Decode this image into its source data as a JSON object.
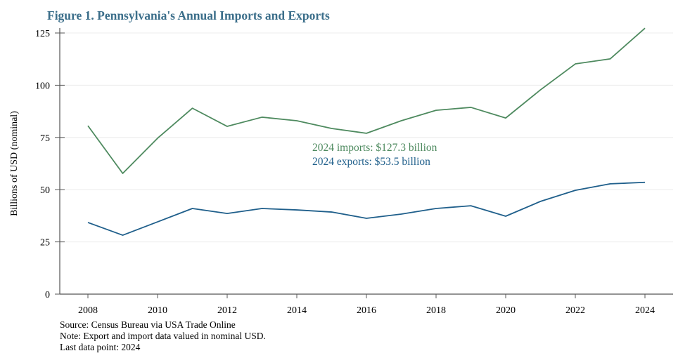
{
  "title": "Figure 1. Pennsylvania's Annual Imports and Exports",
  "notes": [
    "Source: Census Bureau via USA Trade Online",
    "Note: Export and import data valued in nominal USD.",
    "Last data point: 2024"
  ],
  "chart_data": {
    "type": "line",
    "title": "Figure 1. Pennsylvania's Annual Imports and Exports",
    "xlabel": "",
    "ylabel": "Billions of USD (nominal)",
    "xlim": [
      2007.6,
      2024.8
    ],
    "ylim": [
      0,
      125
    ],
    "xticks": [
      2008,
      2010,
      2012,
      2014,
      2016,
      2018,
      2020,
      2022,
      2024
    ],
    "yticks": [
      0,
      25,
      50,
      75,
      100,
      125
    ],
    "grid": "horizontal",
    "x": [
      2008,
      2009,
      2010,
      2011,
      2012,
      2013,
      2014,
      2015,
      2016,
      2017,
      2018,
      2019,
      2020,
      2021,
      2022,
      2023,
      2024
    ],
    "series": [
      {
        "key": "imports",
        "color": "#4e8a5f",
        "values": [
          80.6,
          57.8,
          74.6,
          89.0,
          80.3,
          84.7,
          83.0,
          79.3,
          77.0,
          83.0,
          88.0,
          89.4,
          84.3,
          97.8,
          110.2,
          112.6,
          127.3
        ]
      },
      {
        "key": "exports",
        "color": "#1f5f8b",
        "values": [
          34.3,
          28.2,
          34.6,
          41.0,
          38.6,
          41.0,
          40.3,
          39.3,
          36.3,
          38.3,
          41.0,
          42.3,
          37.3,
          44.4,
          49.7,
          52.8,
          53.5
        ]
      }
    ],
    "annotations": [
      {
        "text": "2024 imports: $127.3 billion",
        "color": "#4e8a5f"
      },
      {
        "text": "2024 exports: $53.5 billion",
        "color": "#1f5f8b"
      }
    ]
  }
}
